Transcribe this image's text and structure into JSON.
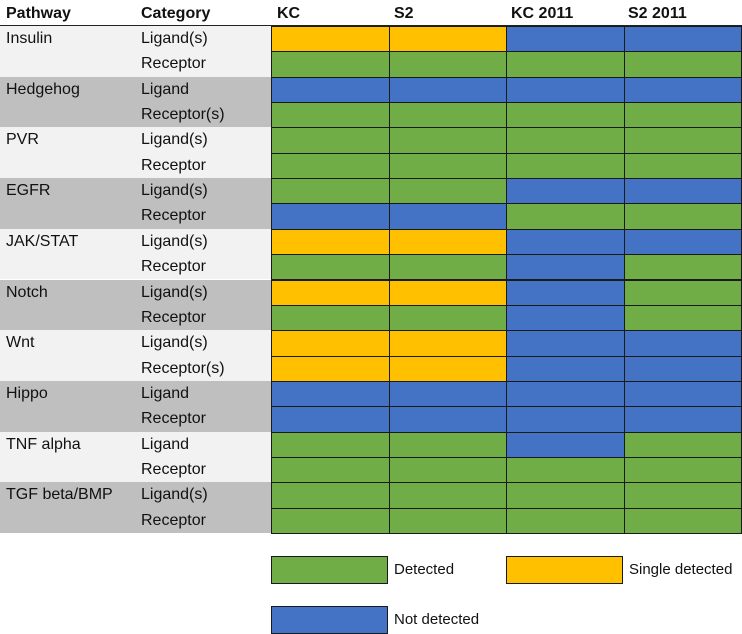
{
  "colors": {
    "detected": "#70ad47",
    "single": "#ffc000",
    "not": "#4472c4",
    "band_light": "#f2f2f2",
    "band_dark": "#bfbfbf"
  },
  "headers": {
    "pathway": "Pathway",
    "category": "Category",
    "kc": "KC",
    "s2": "S2",
    "kc2011": "KC 2011",
    "s22011": "S2 2011"
  },
  "pathways": [
    {
      "name": "Insulin",
      "rows": [
        {
          "category": "Ligand(s)",
          "values": [
            "S",
            "S",
            "N",
            "N"
          ]
        },
        {
          "category": "Receptor",
          "values": [
            "D",
            "D",
            "D",
            "D"
          ]
        }
      ]
    },
    {
      "name": "Hedgehog",
      "rows": [
        {
          "category": "Ligand",
          "values": [
            "N",
            "N",
            "N",
            "N"
          ]
        },
        {
          "category": "Receptor(s)",
          "values": [
            "D",
            "D",
            "D",
            "D"
          ]
        }
      ]
    },
    {
      "name": "PVR",
      "rows": [
        {
          "category": "Ligand(s)",
          "values": [
            "D",
            "D",
            "D",
            "D"
          ]
        },
        {
          "category": "Receptor",
          "values": [
            "D",
            "D",
            "D",
            "D"
          ]
        }
      ]
    },
    {
      "name": "EGFR",
      "rows": [
        {
          "category": "Ligand(s)",
          "values": [
            "D",
            "D",
            "N",
            "N"
          ]
        },
        {
          "category": "Receptor",
          "values": [
            "N",
            "N",
            "D",
            "D"
          ]
        }
      ]
    },
    {
      "name": "JAK/STAT",
      "rows": [
        {
          "category": "Ligand(s)",
          "values": [
            "S",
            "S",
            "N",
            "N"
          ]
        },
        {
          "category": "Receptor",
          "values": [
            "D",
            "D",
            "N",
            "D"
          ]
        }
      ]
    },
    {
      "name": "Notch",
      "rows": [
        {
          "category": "Ligand(s)",
          "values": [
            "S",
            "S",
            "N",
            "D"
          ]
        },
        {
          "category": "Receptor",
          "values": [
            "D",
            "D",
            "N",
            "D"
          ]
        }
      ]
    },
    {
      "name": "Wnt",
      "rows": [
        {
          "category": "Ligand(s)",
          "values": [
            "S",
            "S",
            "N",
            "N"
          ]
        },
        {
          "category": "Receptor(s)",
          "values": [
            "S",
            "S",
            "N",
            "N"
          ]
        }
      ]
    },
    {
      "name": "Hippo",
      "rows": [
        {
          "category": "Ligand",
          "values": [
            "N",
            "N",
            "N",
            "N"
          ]
        },
        {
          "category": "Receptor",
          "values": [
            "N",
            "N",
            "N",
            "N"
          ]
        }
      ]
    },
    {
      "name": "TNF alpha",
      "rows": [
        {
          "category": "Ligand",
          "values": [
            "D",
            "D",
            "N",
            "D"
          ]
        },
        {
          "category": "Receptor",
          "values": [
            "D",
            "D",
            "D",
            "D"
          ]
        }
      ]
    },
    {
      "name": "TGF beta/BMP",
      "rows": [
        {
          "category": "Ligand(s)",
          "values": [
            "D",
            "D",
            "D",
            "D"
          ]
        },
        {
          "category": "Receptor",
          "values": [
            "D",
            "D",
            "D",
            "D"
          ]
        }
      ]
    }
  ],
  "legend": {
    "detected": "Detected",
    "single": "Single detected",
    "not": "Not detected"
  }
}
